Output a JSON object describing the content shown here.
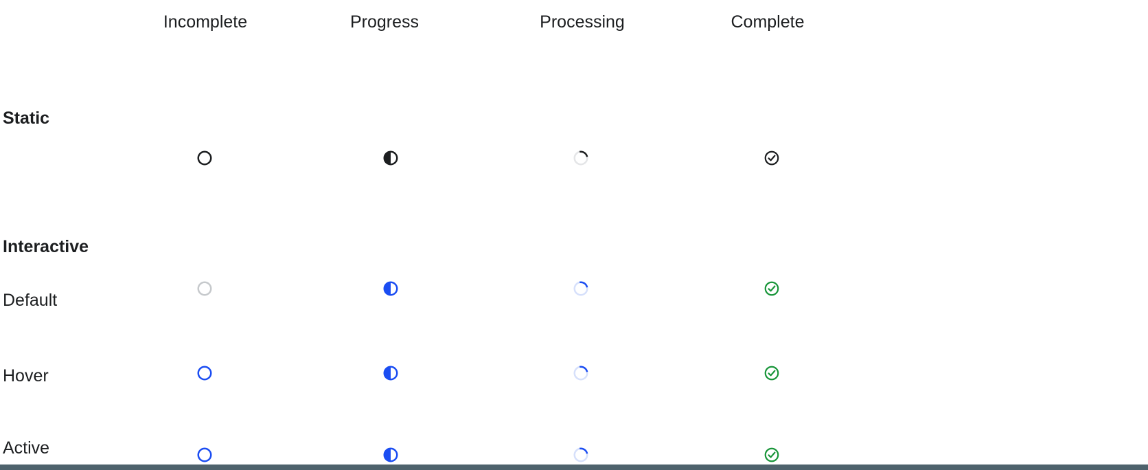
{
  "columns": [
    {
      "id": "incomplete",
      "label": "Incomplete",
      "icon_name": "incomplete-circle-icon"
    },
    {
      "id": "progress",
      "label": "Progress",
      "icon_name": "progress-half-circle-icon"
    },
    {
      "id": "processing",
      "label": "Processing",
      "icon_name": "processing-spinner-icon"
    },
    {
      "id": "complete",
      "label": "Complete",
      "icon_name": "complete-check-icon"
    }
  ],
  "sections": {
    "static": {
      "label": "Static"
    },
    "interactive": {
      "label": "Interactive"
    }
  },
  "rows": [
    {
      "id": "static",
      "label": "",
      "interactable": false,
      "cells": [
        {
          "icon": "circle-outline",
          "stroke": "black"
        },
        {
          "icon": "half-filled-circle",
          "stroke": "black",
          "fill": "black"
        },
        {
          "icon": "spinner",
          "track": "gray_light",
          "arc": "black"
        },
        {
          "icon": "check-circle",
          "stroke": "black"
        }
      ]
    },
    {
      "id": "default",
      "label": "Default",
      "interactable": true,
      "cells": [
        {
          "icon": "circle-outline",
          "stroke": "gray"
        },
        {
          "icon": "half-filled-circle",
          "stroke": "blue",
          "fill": "blue"
        },
        {
          "icon": "spinner",
          "track": "blue_light",
          "arc": "blue"
        },
        {
          "icon": "check-circle",
          "stroke": "green"
        }
      ]
    },
    {
      "id": "hover",
      "label": "Hover",
      "interactable": true,
      "cells": [
        {
          "icon": "circle-outline",
          "stroke": "blue"
        },
        {
          "icon": "half-filled-circle",
          "stroke": "blue",
          "fill": "blue"
        },
        {
          "icon": "spinner",
          "track": "blue_light",
          "arc": "blue"
        },
        {
          "icon": "check-circle",
          "stroke": "green"
        }
      ]
    },
    {
      "id": "active",
      "label": "Active",
      "interactable": true,
      "cells": [
        {
          "icon": "circle-outline",
          "stroke": "blue"
        },
        {
          "icon": "half-filled-circle",
          "stroke": "blue",
          "fill": "blue"
        },
        {
          "icon": "spinner",
          "track": "blue_light",
          "arc": "blue"
        },
        {
          "icon": "check-circle",
          "stroke": "green"
        }
      ]
    }
  ],
  "colors": {
    "black": "#1c1e20",
    "gray": "#c6c9cc",
    "gray_light": "#e4e5e7",
    "blue": "#1b4df2",
    "blue_light": "#d6e0fb",
    "green": "#189539",
    "bottom_bar": "#4e626c",
    "text": "#1c1e20"
  }
}
